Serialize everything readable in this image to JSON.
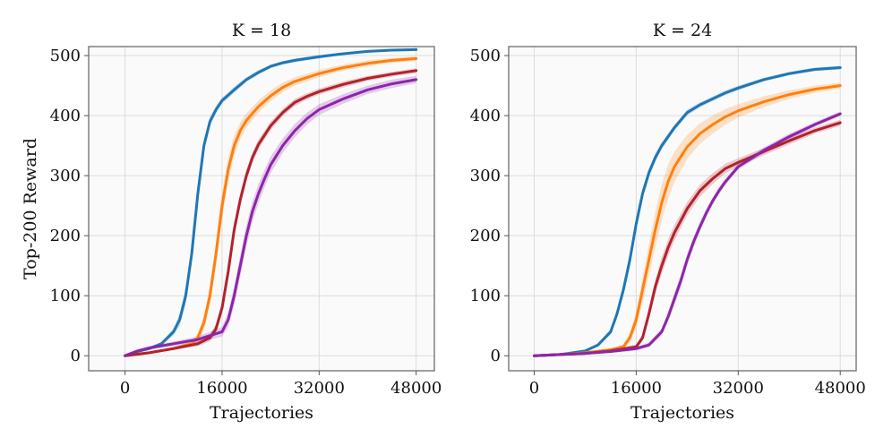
{
  "chart_data": [
    {
      "type": "line",
      "title": "K = 18",
      "xlabel": "Trajectories",
      "ylabel": "Top-200 Reward",
      "xlim": [
        -6000,
        51000
      ],
      "ylim": [
        -25,
        515
      ],
      "xticks": [
        0,
        16000,
        32000,
        48000
      ],
      "yticks": [
        0,
        100,
        200,
        300,
        400,
        500
      ],
      "grid": true,
      "series": [
        {
          "name": "blue",
          "color": "#1f77b4",
          "x": [
            0,
            2000,
            4000,
            6000,
            8000,
            9000,
            10000,
            11000,
            12000,
            13000,
            14000,
            15000,
            16000,
            18000,
            20000,
            22000,
            24000,
            26000,
            28000,
            32000,
            36000,
            40000,
            44000,
            48000
          ],
          "y": [
            0,
            7,
            12,
            20,
            40,
            60,
            100,
            170,
            270,
            350,
            390,
            410,
            425,
            443,
            460,
            472,
            482,
            488,
            492,
            498,
            503,
            507,
            509,
            510
          ],
          "band": [
            0,
            1,
            2,
            3,
            6,
            10,
            14,
            14,
            12,
            10,
            8,
            6,
            5,
            5,
            4,
            4,
            3,
            3,
            3,
            3,
            2,
            2,
            2,
            2
          ]
        },
        {
          "name": "orange",
          "color": "#ff7f0e",
          "x": [
            0,
            4000,
            8000,
            11000,
            12000,
            13000,
            14000,
            15000,
            16000,
            17000,
            18000,
            19000,
            20000,
            22000,
            24000,
            26000,
            28000,
            32000,
            36000,
            40000,
            44000,
            48000
          ],
          "y": [
            0,
            5,
            12,
            20,
            30,
            55,
            100,
            170,
            250,
            310,
            350,
            375,
            392,
            415,
            433,
            447,
            457,
            470,
            480,
            487,
            492,
            495
          ],
          "band": [
            0,
            1,
            3,
            5,
            8,
            12,
            16,
            20,
            22,
            20,
            17,
            14,
            12,
            10,
            9,
            8,
            7,
            6,
            5,
            5,
            4,
            4
          ]
        },
        {
          "name": "red",
          "color": "#b2222c",
          "x": [
            0,
            4000,
            8000,
            12000,
            14000,
            15000,
            16000,
            17000,
            18000,
            19000,
            20000,
            21000,
            22000,
            24000,
            26000,
            28000,
            30000,
            32000,
            36000,
            40000,
            44000,
            48000
          ],
          "y": [
            0,
            5,
            12,
            20,
            30,
            45,
            80,
            140,
            210,
            260,
            300,
            330,
            352,
            383,
            405,
            422,
            432,
            440,
            452,
            462,
            469,
            475
          ],
          "band": [
            0,
            1,
            2,
            4,
            6,
            8,
            10,
            12,
            12,
            11,
            10,
            9,
            8,
            7,
            6,
            6,
            5,
            5,
            5,
            4,
            4,
            4
          ]
        },
        {
          "name": "purple",
          "color": "#8e24aa",
          "x": [
            0,
            2000,
            4000,
            8000,
            12000,
            16000,
            17000,
            18000,
            19000,
            20000,
            21000,
            22000,
            23000,
            24000,
            26000,
            28000,
            30000,
            32000,
            36000,
            40000,
            44000,
            48000
          ],
          "y": [
            0,
            8,
            13,
            20,
            27,
            40,
            60,
            100,
            150,
            200,
            240,
            270,
            295,
            318,
            350,
            375,
            395,
            410,
            428,
            443,
            453,
            460
          ],
          "band": [
            0,
            2,
            3,
            4,
            5,
            8,
            12,
            16,
            18,
            18,
            17,
            16,
            15,
            14,
            12,
            11,
            10,
            9,
            8,
            7,
            7,
            6
          ]
        }
      ]
    },
    {
      "type": "line",
      "title": "K = 24",
      "xlabel": "Trajectories",
      "ylabel": "",
      "xlim": [
        -4000,
        50500
      ],
      "ylim": [
        -25,
        515
      ],
      "xticks": [
        0,
        16000,
        32000,
        48000
      ],
      "yticks": [
        0,
        100,
        200,
        300,
        400,
        500
      ],
      "grid": true,
      "series": [
        {
          "name": "blue",
          "color": "#1f77b4",
          "x": [
            0,
            4000,
            8000,
            10000,
            12000,
            13000,
            14000,
            15000,
            16000,
            17000,
            18000,
            19000,
            20000,
            22000,
            24000,
            26000,
            28000,
            30000,
            32000,
            36000,
            40000,
            44000,
            48000
          ],
          "y": [
            0,
            2,
            8,
            18,
            40,
            70,
            110,
            160,
            220,
            270,
            305,
            330,
            350,
            380,
            405,
            418,
            428,
            438,
            446,
            460,
            470,
            477,
            480
          ],
          "band": [
            0,
            1,
            2,
            3,
            5,
            7,
            9,
            10,
            10,
            9,
            8,
            7,
            6,
            5,
            5,
            4,
            4,
            4,
            4,
            3,
            3,
            3,
            3
          ]
        },
        {
          "name": "orange",
          "color": "#ff7f0e",
          "x": [
            0,
            4000,
            8000,
            12000,
            14000,
            15000,
            16000,
            17000,
            18000,
            19000,
            20000,
            21000,
            22000,
            24000,
            26000,
            28000,
            30000,
            32000,
            36000,
            40000,
            44000,
            48000
          ],
          "y": [
            0,
            2,
            5,
            10,
            15,
            30,
            60,
            110,
            160,
            210,
            255,
            290,
            315,
            348,
            370,
            385,
            398,
            408,
            423,
            435,
            444,
            450
          ],
          "band": [
            0,
            1,
            1,
            2,
            4,
            8,
            14,
            20,
            26,
            30,
            30,
            28,
            25,
            20,
            17,
            15,
            13,
            11,
            9,
            7,
            6,
            5
          ]
        },
        {
          "name": "red",
          "color": "#b2222c",
          "x": [
            0,
            4000,
            8000,
            12000,
            16000,
            17000,
            18000,
            19000,
            20000,
            21000,
            22000,
            23000,
            24000,
            26000,
            28000,
            30000,
            32000,
            36000,
            40000,
            44000,
            48000
          ],
          "y": [
            0,
            2,
            4,
            8,
            15,
            30,
            70,
            115,
            150,
            180,
            205,
            225,
            245,
            275,
            295,
            312,
            322,
            340,
            358,
            375,
            388
          ],
          "band": [
            0,
            1,
            1,
            2,
            4,
            6,
            10,
            12,
            14,
            14,
            13,
            12,
            11,
            10,
            9,
            8,
            7,
            6,
            6,
            5,
            5
          ]
        },
        {
          "name": "purple",
          "color": "#8e24aa",
          "x": [
            0,
            4000,
            8000,
            12000,
            16000,
            18000,
            20000,
            21000,
            22000,
            23000,
            24000,
            25000,
            26000,
            27000,
            28000,
            29000,
            30000,
            32000,
            36000,
            40000,
            44000,
            48000
          ],
          "y": [
            0,
            2,
            4,
            7,
            12,
            18,
            40,
            65,
            95,
            125,
            160,
            190,
            215,
            238,
            258,
            275,
            290,
            315,
            342,
            365,
            385,
            403
          ],
          "band": [
            0,
            1,
            1,
            2,
            3,
            4,
            6,
            8,
            10,
            10,
            10,
            9,
            8,
            7,
            6,
            6,
            5,
            5,
            5,
            5,
            4,
            4
          ]
        }
      ]
    }
  ]
}
